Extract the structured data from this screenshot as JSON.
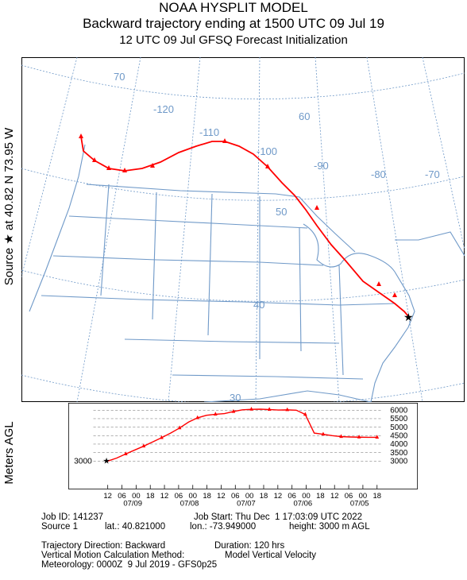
{
  "header": {
    "title1": "NOAA HYSPLIT MODEL",
    "title2": "Backward trajectory ending at 1500 UTC 09 Jul 19",
    "title3": "12 UTC 09 Jul    GFSQ  Forecast Initialization"
  },
  "side_labels": {
    "source": "Source ★ at   40.82 N   73.95 W",
    "vertical": "Meters AGL"
  },
  "map": {
    "lon_labels": [
      "-120",
      "-110",
      "-100",
      "-90",
      "-80",
      "-70",
      "70",
      "60"
    ],
    "lat_labels": [
      "50",
      "40",
      "30"
    ],
    "line_color": "#6f99c8",
    "grid_color": "#6f99c8",
    "trajectory_color": "#ff0000"
  },
  "chart_data": {
    "type": "line",
    "ylabel": "Meters AGL",
    "y_ticks": [
      3000,
      3500,
      4000,
      4500,
      5000,
      5500,
      6000
    ],
    "ylim": [
      3000,
      6250
    ],
    "x_hour_labels": [
      "12",
      "06",
      "00",
      "18",
      "12",
      "06",
      "00",
      "18",
      "12",
      "06",
      "00",
      "18",
      "12",
      "06",
      "00",
      "18",
      "12",
      "06",
      "00",
      "18"
    ],
    "x_date_labels": [
      "07/09",
      "07/08",
      "07/07",
      "07/06",
      "07/05"
    ],
    "source_height": "3000",
    "series": [
      {
        "values": [
          3000,
          3180,
          3420,
          3650,
          3880,
          4130,
          4380,
          4650,
          4950,
          5300,
          5550,
          5700,
          5760,
          5800,
          5920,
          6020,
          6050,
          6060,
          6040,
          6010,
          6020,
          6000,
          5750,
          4650,
          4580,
          4500,
          4440,
          4420,
          4410,
          4400,
          4400
        ]
      }
    ]
  },
  "info": {
    "job_id": "Job ID: 141237",
    "job_start": "Job Start: Thu Dec  1 17:03:09 UTC 2022",
    "source": "Source 1",
    "lat": "lat.: 40.821000",
    "lon": "lon.: -73.949000",
    "height": "height: 3000 m AGL",
    "direction": "Trajectory Direction: Backward",
    "duration": "Duration: 120 hrs",
    "vertical_method": "Vertical Motion Calculation Method:",
    "vertical_value": "Model Vertical Velocity",
    "meteorology": "Meteorology: 0000Z  9 Jul 2019 - GFS0p25"
  }
}
